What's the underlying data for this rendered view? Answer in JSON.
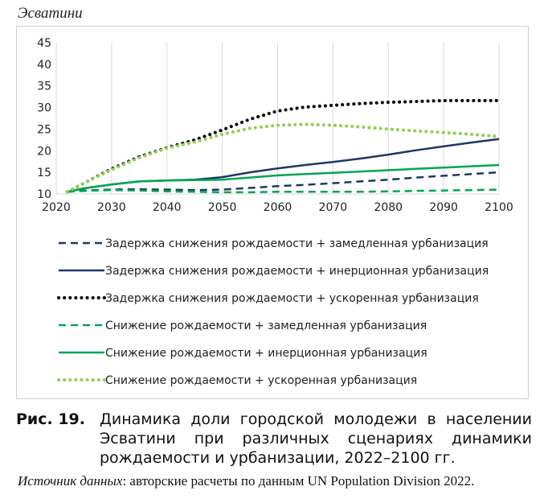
{
  "chart_title": "Эсватини",
  "caption": {
    "number": "Рис. 19.",
    "text": "Динамика доли городской молодежи в населении Эсватини при различных сценариях динамики рождаемости и урбанизации, 2022–2100 гг."
  },
  "source": {
    "label": "Источник данных",
    "text": ": авторские расчеты по данным UN Population Division 2022."
  },
  "chart_data": {
    "type": "line",
    "title": "Эсватини",
    "xlabel": "",
    "ylabel": "",
    "xlim": [
      2020,
      2100
    ],
    "ylim": [
      10,
      45
    ],
    "xticks": [
      2020,
      2030,
      2040,
      2050,
      2060,
      2070,
      2080,
      2090,
      2100
    ],
    "yticks": [
      10,
      15,
      20,
      25,
      30,
      35,
      40,
      45
    ],
    "grid": "vertical",
    "legend_position": "bottom",
    "x": [
      2022,
      2025,
      2030,
      2035,
      2040,
      2045,
      2050,
      2055,
      2060,
      2065,
      2070,
      2075,
      2080,
      2085,
      2090,
      2095,
      2100
    ],
    "series": [
      {
        "name": "Задержка снижения рождаемости + замедленная урбанизация",
        "color": "#1f3864",
        "style": "dash",
        "values": [
          10.5,
          10.8,
          11.0,
          11.1,
          11.0,
          10.9,
          11.0,
          11.4,
          11.8,
          12.1,
          12.5,
          12.9,
          13.3,
          13.8,
          14.2,
          14.6,
          15.0
        ]
      },
      {
        "name": "Задержка снижения рождаемости + инерционная урбанизация",
        "color": "#1f3864",
        "style": "solid",
        "values": [
          10.5,
          11.3,
          12.2,
          12.9,
          13.1,
          13.3,
          13.9,
          15.0,
          15.9,
          16.7,
          17.4,
          18.2,
          19.1,
          20.1,
          21.0,
          21.9,
          22.7
        ]
      },
      {
        "name": "Задержка снижения рождаемости + ускоренная урбанизация",
        "color": "#000000",
        "style": "dot",
        "values": [
          10.5,
          12.5,
          15.8,
          18.6,
          20.7,
          22.5,
          24.8,
          27.3,
          29.2,
          30.1,
          30.5,
          30.9,
          31.2,
          31.4,
          31.6,
          31.6,
          31.6
        ]
      },
      {
        "name": "Снижение рождаемости + замедленная урбанизация",
        "color": "#00a651",
        "style": "dash",
        "values": [
          10.5,
          10.7,
          10.9,
          10.8,
          10.6,
          10.5,
          10.4,
          10.4,
          10.5,
          10.5,
          10.5,
          10.5,
          10.6,
          10.7,
          10.8,
          10.9,
          11.0
        ]
      },
      {
        "name": "Снижение рождаемости + инерционная урбанизация",
        "color": "#00a651",
        "style": "solid",
        "values": [
          10.5,
          11.3,
          12.2,
          12.9,
          13.1,
          13.2,
          13.3,
          13.8,
          14.3,
          14.6,
          14.9,
          15.2,
          15.5,
          15.8,
          16.1,
          16.4,
          16.7
        ]
      },
      {
        "name": "Снижение рождаемости + ускоренная урбанизация",
        "color": "#92d050",
        "style": "dot",
        "values": [
          10.5,
          12.5,
          15.6,
          18.4,
          20.6,
          22.0,
          23.8,
          25.2,
          25.9,
          26.1,
          25.9,
          25.5,
          25.0,
          24.6,
          24.2,
          23.8,
          23.3
        ]
      }
    ]
  }
}
